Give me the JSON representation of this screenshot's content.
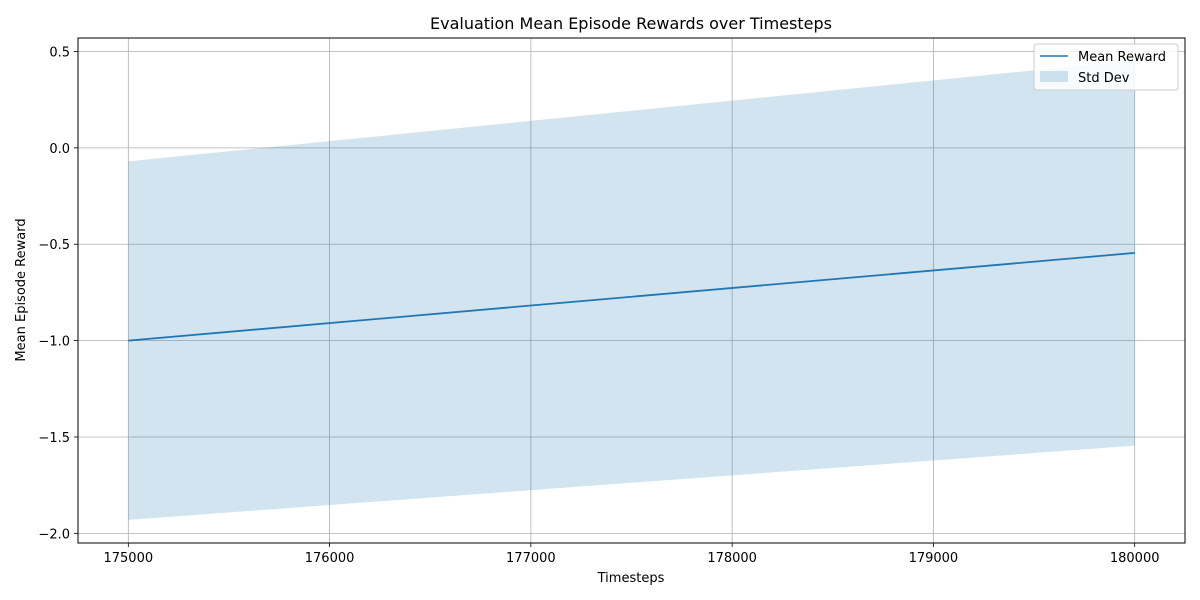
{
  "chart_data": {
    "type": "line",
    "title": "Evaluation Mean Episode Rewards over Timesteps",
    "xlabel": "Timesteps",
    "ylabel": "Mean Episode Reward",
    "x": [
      175000,
      180000
    ],
    "series": [
      {
        "name": "Mean Reward",
        "values": [
          -1.0,
          -0.545
        ],
        "color": "#1f77b4"
      }
    ],
    "band": {
      "name": "Std Dev",
      "lower": [
        -1.93,
        -1.545
      ],
      "upper": [
        -0.07,
        0.455
      ],
      "color": "#1f77b4",
      "opacity": 0.2
    },
    "xlim": [
      174750,
      180250
    ],
    "ylim": [
      -2.05,
      0.57
    ],
    "xticks": [
      175000,
      176000,
      177000,
      178000,
      179000,
      180000
    ],
    "yticks": [
      0.5,
      0.0,
      -0.5,
      -1.0,
      -1.5,
      -2.0
    ],
    "ytick_labels": [
      "0.5",
      "0.0",
      "−0.5",
      "−1.0",
      "−1.5",
      "−2.0"
    ],
    "grid": true,
    "legend_position": "top-right"
  }
}
